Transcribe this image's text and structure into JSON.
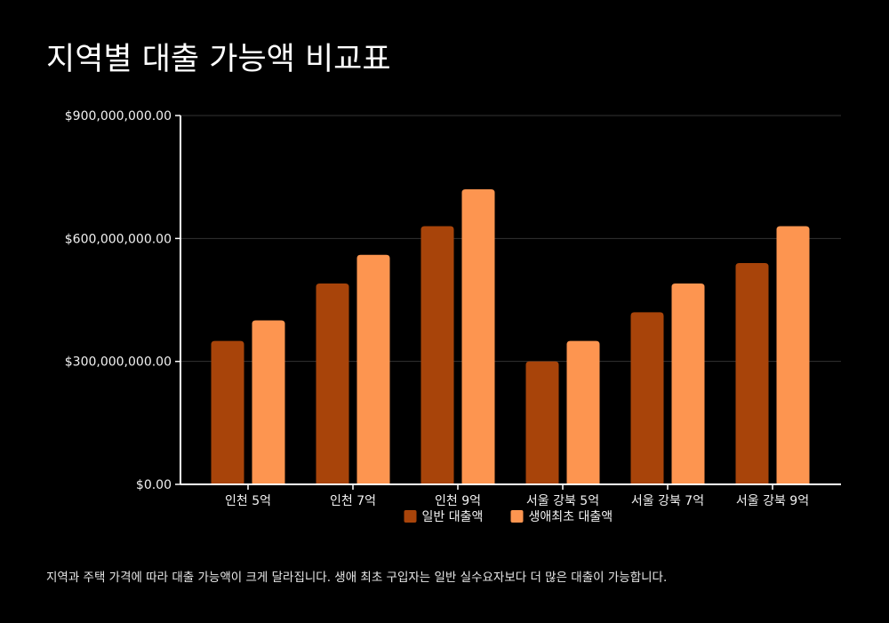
{
  "title": "지역별 대출 가능액 비교표",
  "caption": "지역과 주택 가격에 따라 대출 가능액이 크게 달라집니다. 생애 최초 구입자는 일반 실수요자보다 더 많은 대출이 가능합니다.",
  "colors": {
    "background": "#000000",
    "series_general": "#a8440a",
    "series_first": "#fd9550",
    "grid": "#333333",
    "axis": "#ffffff",
    "text": "#f2f2f2"
  },
  "chart_data": {
    "type": "bar",
    "title": "지역별 대출 가능액 비교표",
    "xlabel": "",
    "ylabel": "",
    "categories": [
      "인천 5억",
      "인천 7억",
      "인천 9억",
      "서울 강북 5억",
      "서울 강북 7억",
      "서울 강북 9억"
    ],
    "series": [
      {
        "name": "일반 대출액",
        "color": "#a8440a",
        "values": [
          350000000,
          490000000,
          630000000,
          300000000,
          420000000,
          540000000
        ]
      },
      {
        "name": "생애최초 대출액",
        "color": "#fd9550",
        "values": [
          400000000,
          560000000,
          720000000,
          350000000,
          490000000,
          630000000
        ]
      }
    ],
    "ylim": [
      0,
      900000000
    ],
    "yticks": [
      0,
      300000000,
      600000000,
      900000000
    ],
    "ytick_labels": [
      "$0.00",
      "$300,000,000.00",
      "$600,000,000.00",
      "$900,000,000.00"
    ],
    "grid": true,
    "legend_position": "bottom-center"
  }
}
